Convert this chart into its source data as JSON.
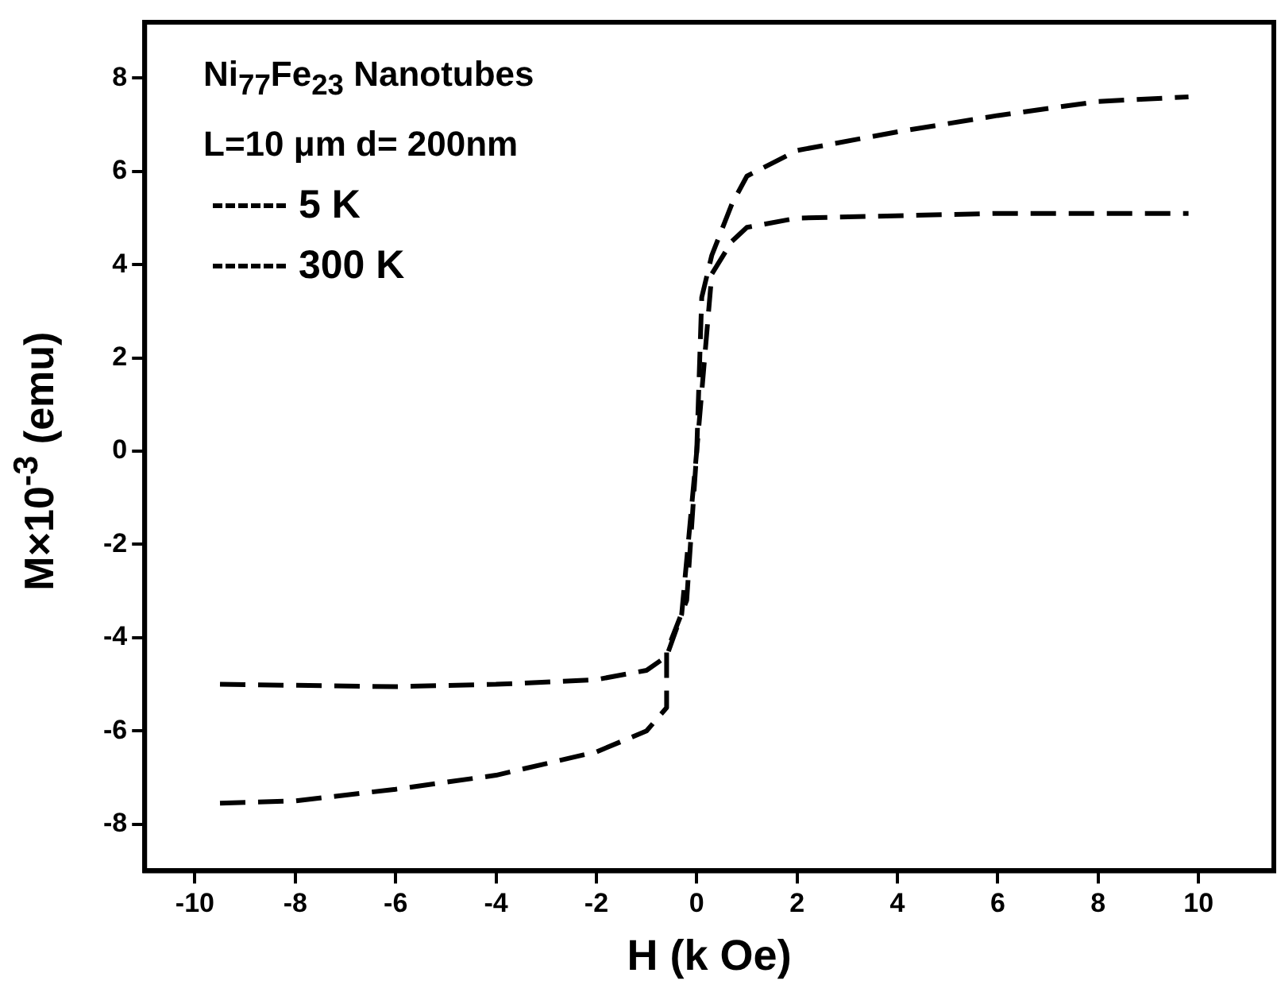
{
  "chart_data": {
    "type": "line",
    "xlabel": "H (k Oe)",
    "ylabel": "M×10$^{-3}$ (emu)",
    "annotations": [
      "Ni$_{77}$Fe$_{23}$ Nanotubes",
      "L=10 μm d= 200nm"
    ],
    "xlim": [
      -11,
      11.5
    ],
    "xticks": [
      -10,
      -8,
      -6,
      -4,
      -2,
      0,
      2,
      4,
      6,
      8,
      10
    ],
    "ylim": [
      -9,
      9.2
    ],
    "yticks": [
      -8,
      -6,
      -4,
      -2,
      0,
      2,
      4,
      6,
      8
    ],
    "grid": false,
    "legend": "top left",
    "line_style": "dashed",
    "marker": "none",
    "series": [
      {
        "name": "5 K",
        "color": "#000000",
        "x": [
          -9.5,
          -8,
          -6,
          -4,
          -2,
          -1,
          -0.6,
          -0.6,
          -0.2,
          0,
          0.1,
          0.3,
          0.7,
          1,
          2,
          4,
          6,
          8,
          9.8
        ],
        "values": [
          -7.55,
          -7.5,
          -7.25,
          -6.95,
          -6.45,
          -6.0,
          -5.5,
          -4.3,
          -3.2,
          0,
          3.3,
          4.2,
          5.3,
          5.9,
          6.45,
          6.85,
          7.2,
          7.5,
          7.6
        ]
      },
      {
        "name": "300 K",
        "color": "#000000",
        "x": [
          -9.5,
          -6,
          -4,
          -2,
          -1,
          -0.6,
          -0.3,
          0,
          0.3,
          0.7,
          1,
          2,
          6,
          9.8
        ],
        "values": [
          -5.0,
          -5.05,
          -5.0,
          -4.9,
          -4.7,
          -4.4,
          -3.5,
          0,
          3.8,
          4.5,
          4.8,
          5.0,
          5.1,
          5.1
        ]
      }
    ]
  }
}
